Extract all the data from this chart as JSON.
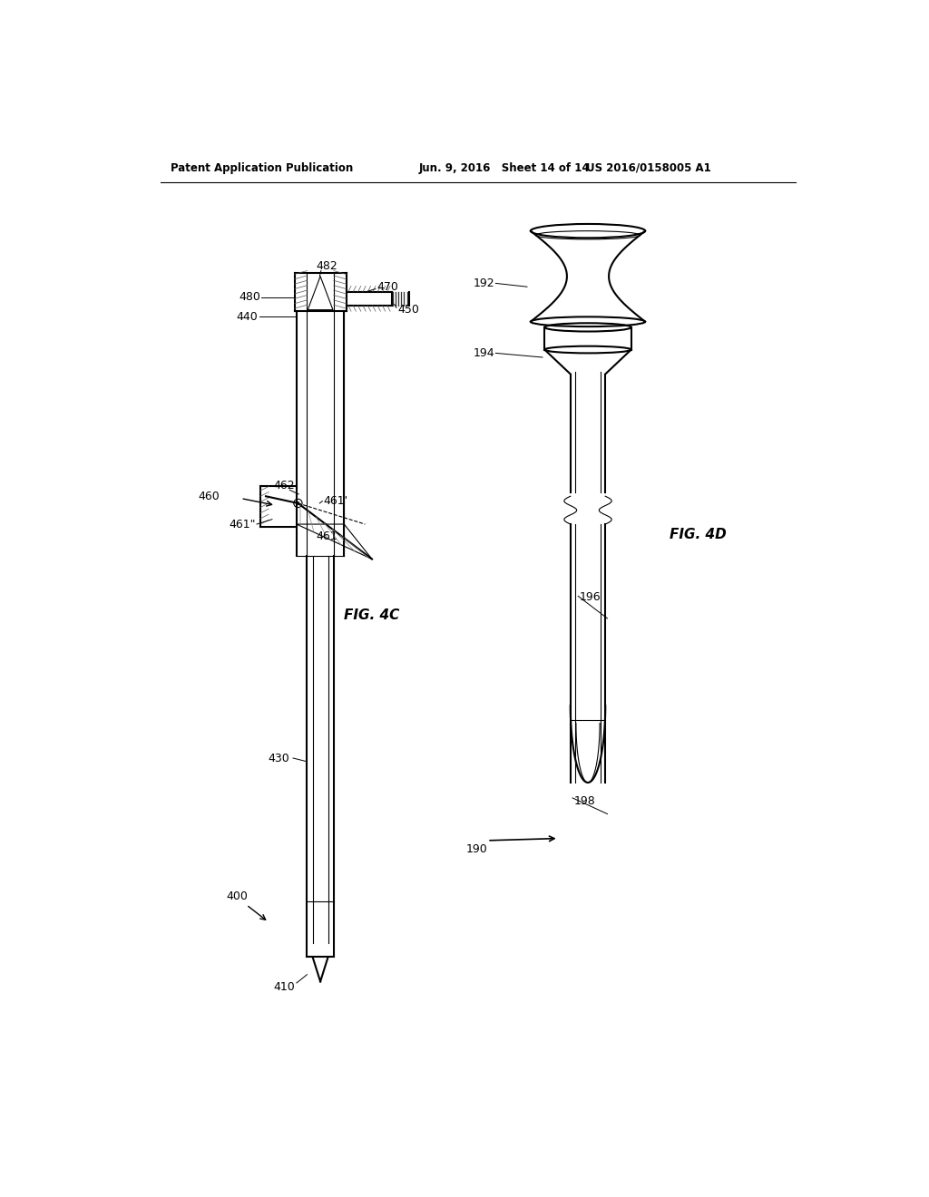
{
  "title_left": "Patent Application Publication",
  "title_mid": "Jun. 9, 2016   Sheet 14 of 14",
  "title_right": "US 2016/0158005 A1",
  "fig4c_label": "FIG. 4C",
  "fig4d_label": "FIG. 4D",
  "background": "#ffffff",
  "line_color": "#000000"
}
